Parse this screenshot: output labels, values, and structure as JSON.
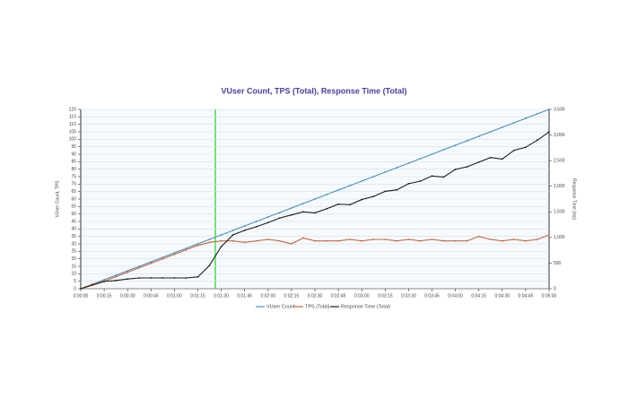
{
  "chart_data": {
    "type": "line",
    "title": "VUser Count, TPS (Total), Response Time (Total)",
    "y_label": "VUser Count, TPS",
    "y2_label": "Response Time (ms)",
    "categories": [
      "0:00:00",
      null,
      "0:00:15",
      null,
      "0:00:30",
      null,
      "0:00:45",
      null,
      "0:01:00",
      null,
      "0:01:15",
      null,
      "0:01:30",
      null,
      "0:01:45",
      null,
      "0:02:00",
      null,
      "0:02:15",
      null,
      "0:02:30",
      null,
      "0:02:45",
      null,
      "0:03:00",
      null,
      "0:03:15",
      null,
      "0:03:30",
      null,
      "0:03:45",
      null,
      "0:04:00",
      null,
      "0:04:15",
      null,
      "0:04:30",
      null,
      "0:04:45",
      null,
      "0:05:00"
    ],
    "series": [
      {
        "name": "VUser Count",
        "color": "#4a8fbf",
        "values": [
          0,
          3,
          6,
          9,
          12,
          15,
          18,
          21,
          24,
          27,
          30,
          33,
          36,
          39,
          42,
          45,
          48,
          51,
          54,
          57,
          60,
          63,
          66,
          69,
          72,
          75,
          78,
          81,
          84,
          87,
          90,
          93,
          96,
          99,
          102,
          105,
          108,
          111,
          114,
          117,
          120
        ]
      },
      {
        "name": "TPS (Total)",
        "color": "#c8643c",
        "values": [
          0,
          3,
          5,
          8,
          11,
          14,
          17,
          20,
          23,
          26,
          29,
          31,
          32,
          32,
          31,
          32,
          33,
          32,
          30,
          34,
          32,
          32,
          32,
          33,
          32,
          33,
          33,
          32,
          33,
          32,
          33,
          32,
          32,
          32,
          35,
          33,
          32,
          33,
          32,
          33,
          36
        ]
      },
      {
        "name": "Response Time (Total)",
        "color": "#1e1e1e",
        "axis": "y2",
        "values": [
          0,
          70,
          140,
          160,
          190,
          210,
          210,
          210,
          210,
          210,
          230,
          455,
          820,
          1050,
          1140,
          1210,
          1290,
          1380,
          1440,
          1500,
          1480,
          1560,
          1650,
          1640,
          1740,
          1800,
          1900,
          1930,
          2050,
          2100,
          2200,
          2180,
          2330,
          2380,
          2470,
          2560,
          2530,
          2700,
          2760,
          2900,
          3060
        ]
      }
    ],
    "ylim": [
      0,
      120
    ],
    "yticks": [
      0,
      5,
      10,
      15,
      20,
      25,
      30,
      35,
      40,
      45,
      50,
      55,
      60,
      65,
      70,
      75,
      80,
      85,
      90,
      95,
      100,
      105,
      110,
      115,
      120
    ],
    "y2lim": [
      0,
      3500
    ],
    "y2ticks": [
      0,
      500,
      {
        "value": 1000,
        "label": "1,000"
      },
      {
        "value": 1500,
        "label": "1,500"
      },
      {
        "value": 2000,
        "label": "2,000"
      },
      {
        "value": 2500,
        "label": "2,500"
      },
      {
        "value": 3000,
        "label": "3,000"
      },
      {
        "value": 3500,
        "label": "3,500"
      }
    ],
    "grid": true
  }
}
